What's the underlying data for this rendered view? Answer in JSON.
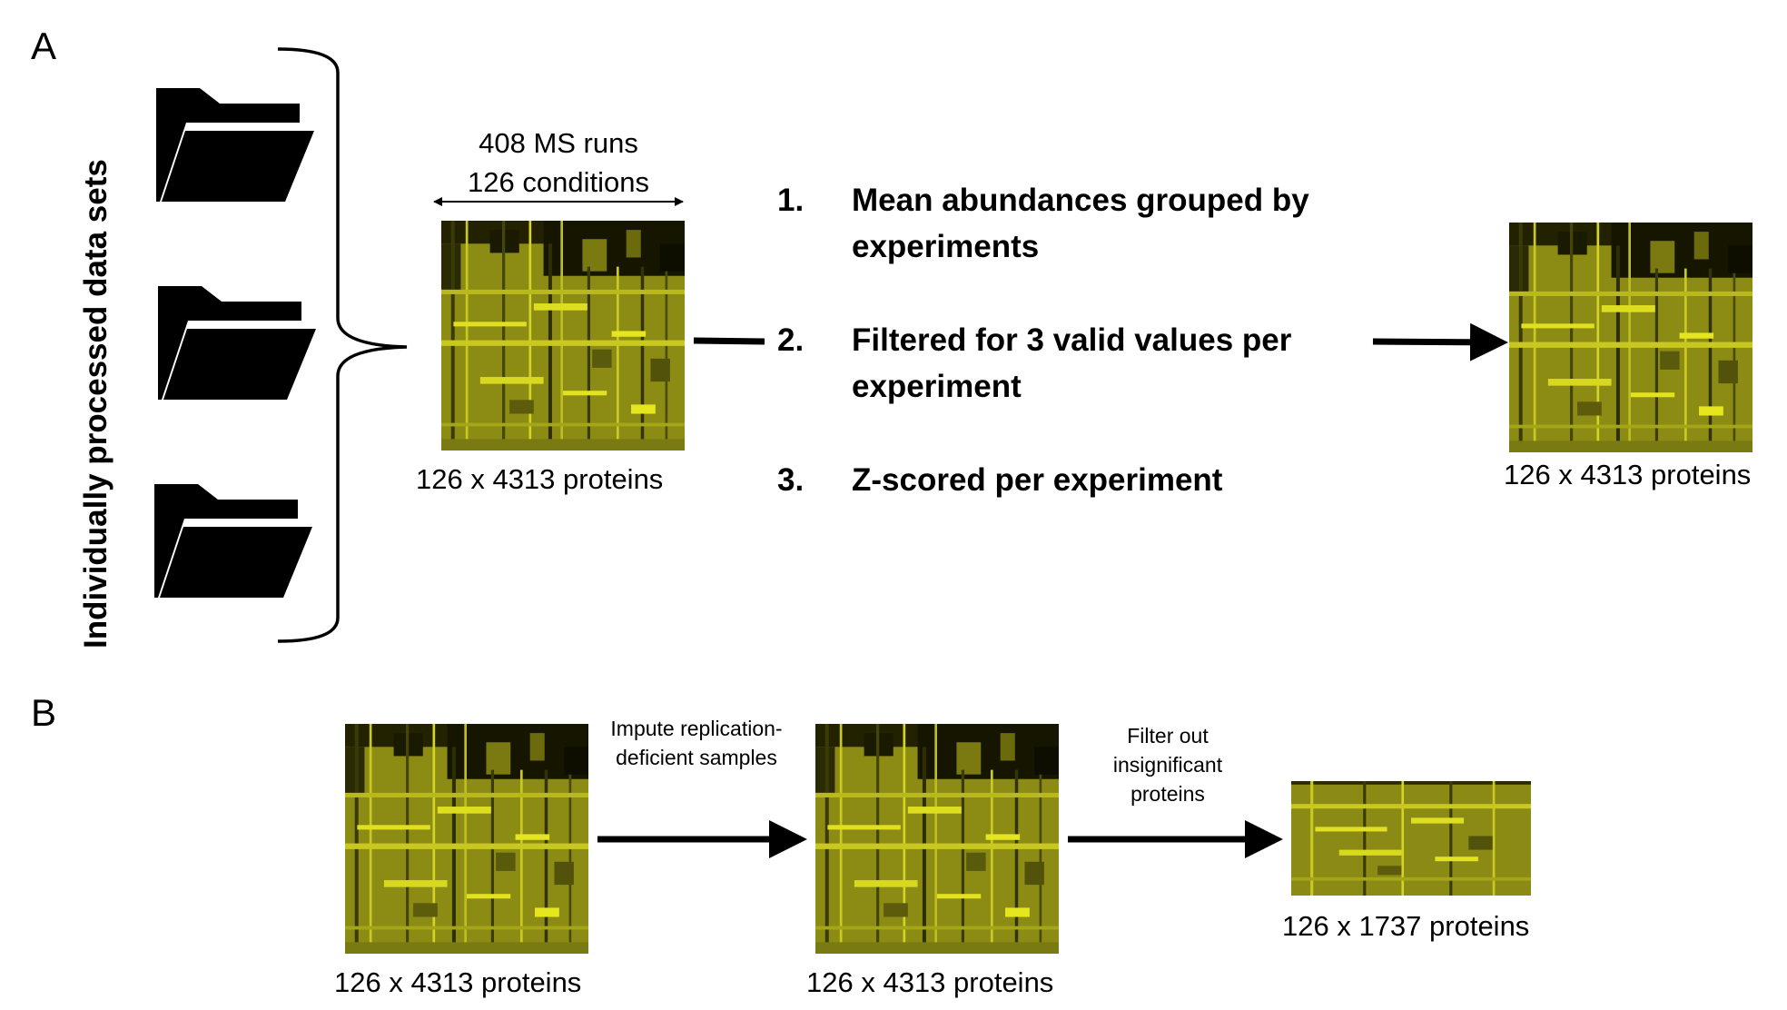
{
  "panel_a": {
    "letter": "A",
    "side_label": "Individually processed data sets",
    "runs_label": "408 MS runs",
    "conditions_label": "126 conditions",
    "input_matrix_label": "126 x 4313 proteins",
    "steps": [
      {
        "number": "1.",
        "text": "Mean abundances grouped by experiments"
      },
      {
        "number": "2.",
        "text": "Filtered for 3 valid values per experiment"
      },
      {
        "number": "3.",
        "text": "Z-scored per experiment"
      }
    ],
    "output_matrix_label": "126 x 4313 proteins"
  },
  "panel_b": {
    "letter": "B",
    "matrix_1_label": "126 x 4313 proteins",
    "step_1": "Impute replication-deficient samples",
    "matrix_2_label": "126 x 4313 proteins",
    "step_2": "Filter out insignificant proteins",
    "matrix_3_label": "126 x 1737 proteins"
  },
  "colors": {
    "heatmap_base": "#8c8c14",
    "heatmap_bright": "#e6e61e",
    "heatmap_dark": "#111100",
    "ink": "#000000"
  },
  "icons": [
    "folder-icon",
    "folder-icon",
    "folder-icon"
  ]
}
